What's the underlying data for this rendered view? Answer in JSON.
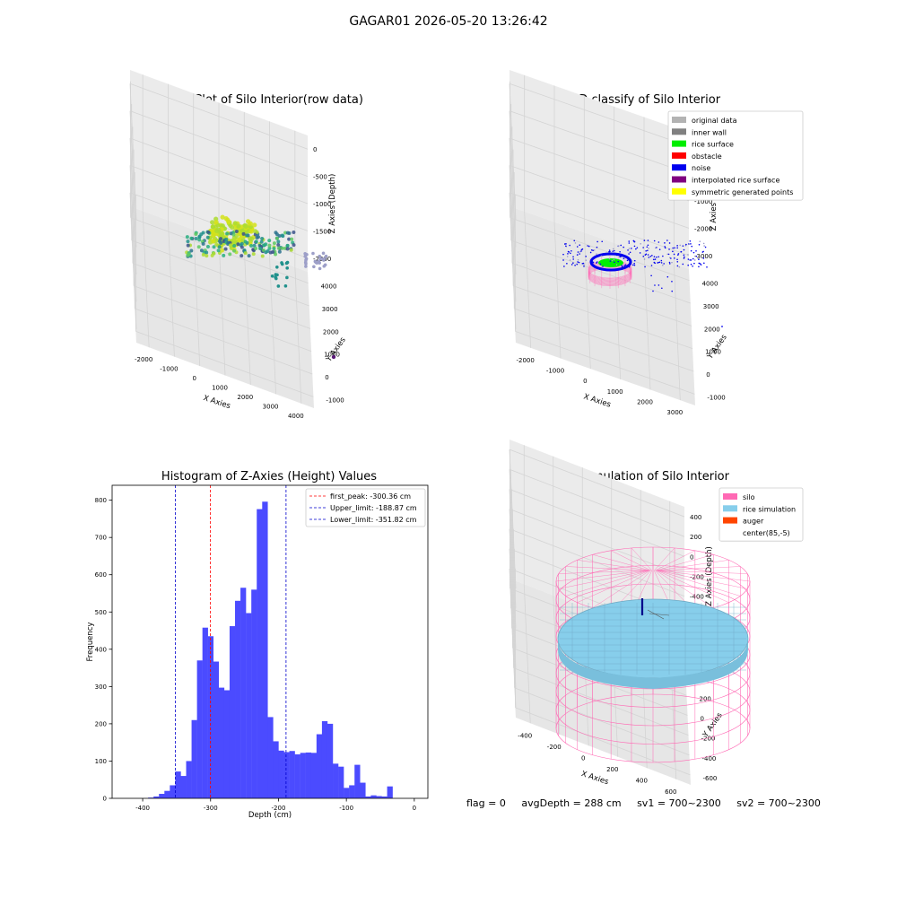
{
  "suptitle": "GAGAR01 2026-05-20 13:26:42",
  "chart_data": [
    {
      "type": "scatter3d",
      "title": "3D Plot of Silo Interior(row data)",
      "xlabel": "X Axies",
      "ylabel": "Y Axies",
      "zlabel": "Z Axies (Depth)",
      "x_ticks": [
        -2000,
        -1000,
        0,
        1000,
        2000,
        3000,
        4000
      ],
      "y_ticks": [
        -1000,
        0,
        1000,
        2000,
        3000,
        4000
      ],
      "z_ticks": [
        0,
        -500,
        -1000,
        -1500,
        -2000
      ],
      "colormap": "viridis"
    },
    {
      "type": "scatter3d",
      "title": "3D classify of Silo Interior",
      "xlabel": "X Axies",
      "ylabel": "Y Axies",
      "zlabel": "Z Axies (Depth)",
      "x_ticks": [
        -2000,
        -1000,
        0,
        1000,
        2000,
        3000
      ],
      "y_ticks": [
        -1000,
        0,
        1000,
        2000,
        3000,
        4000
      ],
      "z_ticks": [
        1000,
        0,
        -1000,
        -2000,
        -3000
      ],
      "legend_position": "top-right",
      "legend": [
        {
          "label": "original data",
          "color": "#b3b3b3"
        },
        {
          "label": "inner wall",
          "color": "#808080"
        },
        {
          "label": "rice surface",
          "color": "#00ee00"
        },
        {
          "label": "obstacle",
          "color": "#ff0000"
        },
        {
          "label": "noise",
          "color": "#0000ee"
        },
        {
          "label": "interpolated rice surface",
          "color": "#800080"
        },
        {
          "label": "symmetric generated points",
          "color": "#ffff00"
        }
      ]
    },
    {
      "type": "histogram",
      "title": "Histogram of Z-Axies (Height) Values",
      "xlabel": "Depth (cm)",
      "ylabel": "Frequency",
      "xlim": [
        -445,
        20
      ],
      "ylim": [
        0,
        840
      ],
      "x_ticks": [
        -400,
        -300,
        -200,
        -100,
        0
      ],
      "y_ticks": [
        0,
        100,
        200,
        300,
        400,
        500,
        600,
        700,
        800
      ],
      "bar_color": "#4b4bff",
      "bin_width": 8,
      "bins": [
        {
          "x": -392,
          "count": 2
        },
        {
          "x": -384,
          "count": 5
        },
        {
          "x": -376,
          "count": 12
        },
        {
          "x": -368,
          "count": 20
        },
        {
          "x": -360,
          "count": 35
        },
        {
          "x": -352,
          "count": 72
        },
        {
          "x": -344,
          "count": 60
        },
        {
          "x": -336,
          "count": 100
        },
        {
          "x": -328,
          "count": 210
        },
        {
          "x": -320,
          "count": 370
        },
        {
          "x": -312,
          "count": 458
        },
        {
          "x": -304,
          "count": 435
        },
        {
          "x": -296,
          "count": 367
        },
        {
          "x": -288,
          "count": 297
        },
        {
          "x": -280,
          "count": 290
        },
        {
          "x": -272,
          "count": 462
        },
        {
          "x": -264,
          "count": 530
        },
        {
          "x": -256,
          "count": 565
        },
        {
          "x": -248,
          "count": 497
        },
        {
          "x": -240,
          "count": 560
        },
        {
          "x": -232,
          "count": 776
        },
        {
          "x": -224,
          "count": 796
        },
        {
          "x": -216,
          "count": 218
        },
        {
          "x": -208,
          "count": 153
        },
        {
          "x": -200,
          "count": 128
        },
        {
          "x": -192,
          "count": 124
        },
        {
          "x": -184,
          "count": 127
        },
        {
          "x": -176,
          "count": 118
        },
        {
          "x": -168,
          "count": 122
        },
        {
          "x": -160,
          "count": 123
        },
        {
          "x": -152,
          "count": 122
        },
        {
          "x": -144,
          "count": 172
        },
        {
          "x": -136,
          "count": 207
        },
        {
          "x": -128,
          "count": 200
        },
        {
          "x": -120,
          "count": 93
        },
        {
          "x": -112,
          "count": 85
        },
        {
          "x": -104,
          "count": 28
        },
        {
          "x": -96,
          "count": 35
        },
        {
          "x": -88,
          "count": 90
        },
        {
          "x": -80,
          "count": 42
        },
        {
          "x": -72,
          "count": 5
        },
        {
          "x": -64,
          "count": 8
        },
        {
          "x": -56,
          "count": 6
        },
        {
          "x": -48,
          "count": 5
        },
        {
          "x": -40,
          "count": 32
        }
      ],
      "vlines": [
        {
          "x": -300.36,
          "color": "#ff0000",
          "label": "first_peak: -300.36 cm"
        },
        {
          "x": -188.87,
          "color": "#0000cc",
          "label": "Upper_limit: -188.87 cm"
        },
        {
          "x": -351.82,
          "color": "#0000cc",
          "label": "Lower_limit: -351.82 cm"
        }
      ],
      "legend_position": "top-right"
    },
    {
      "type": "surface3d",
      "title": "3D simulation of Silo Interior",
      "xlabel": "X Axies",
      "ylabel": "Y Axies",
      "zlabel": "Z Axies (Depth)",
      "x_ticks": [
        -400,
        -200,
        0,
        200,
        400,
        600
      ],
      "y_ticks": [
        -600,
        -400,
        -200,
        0,
        200,
        400,
        600
      ],
      "z_ticks": [
        400,
        200,
        0,
        -200,
        -400,
        -600,
        -800
      ],
      "legend_position": "top-right",
      "legend": [
        {
          "label": "silo",
          "color": "#ff69b4"
        },
        {
          "label": "rice simulation",
          "color": "#87ceeb"
        },
        {
          "label": "auger",
          "color": "#ff4500"
        },
        {
          "label": "center(85,-5)",
          "color": "#ffffff"
        }
      ]
    }
  ],
  "footer": {
    "flag": "flag = 0",
    "avg_depth": "avgDepth = 288 cm",
    "sv1": "sv1 = 700~2300",
    "sv2": "sv2 = 700~2300"
  }
}
